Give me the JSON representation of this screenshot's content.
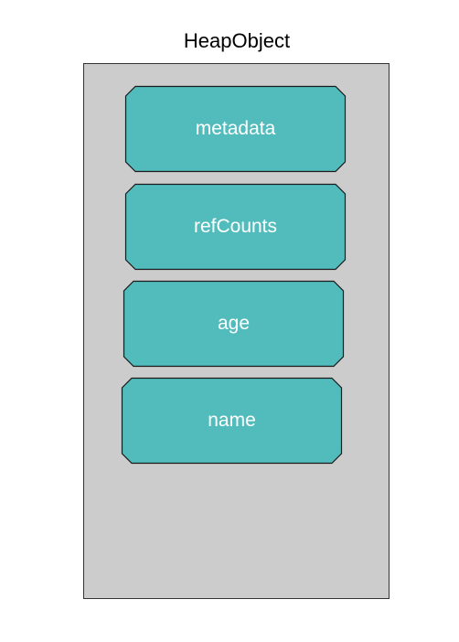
{
  "diagram": {
    "title": "HeapObject",
    "colors": {
      "container_fill": "#cccccc",
      "container_border": "#333333",
      "field_fill": "#52bcbd",
      "field_border": "#1a1a1a",
      "field_text": "#ffffff"
    },
    "fields": [
      {
        "label": "metadata"
      },
      {
        "label": "refCounts"
      },
      {
        "label": "age"
      },
      {
        "label": "name"
      }
    ]
  }
}
